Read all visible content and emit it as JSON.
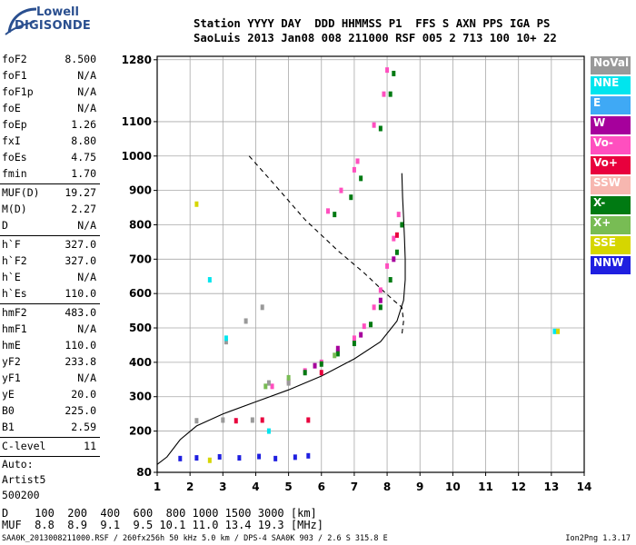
{
  "logo": {
    "line1": "Lowell",
    "line2": "DIGISONDE"
  },
  "header": {
    "line1": "Station YYYY DAY  DDD HHMMSS P1  FFS S AXN PPS IGA PS",
    "line2": "SaoLuis 2013 Jan08 008 211000 RSF 005 2 713 100 10+ 22"
  },
  "params": [
    {
      "label": "foF2",
      "value": "8.500"
    },
    {
      "label": "foF1",
      "value": "N/A"
    },
    {
      "label": "foF1p",
      "value": "N/A"
    },
    {
      "label": "foE",
      "value": "N/A"
    },
    {
      "label": "foEp",
      "value": "1.26"
    },
    {
      "label": "fxI",
      "value": "8.80"
    },
    {
      "label": "foEs",
      "value": "4.75"
    },
    {
      "label": "fmin",
      "value": "1.70"
    },
    {
      "sep": true
    },
    {
      "label": "MUF(D)",
      "value": "19.27"
    },
    {
      "label": "M(D)",
      "value": "2.27"
    },
    {
      "label": "D",
      "value": "N/A"
    },
    {
      "sep": true
    },
    {
      "label": "h`F",
      "value": "327.0"
    },
    {
      "label": "h`F2",
      "value": "327.0"
    },
    {
      "label": "h`E",
      "value": "N/A"
    },
    {
      "label": "h`Es",
      "value": "110.0"
    },
    {
      "sep": true
    },
    {
      "label": "hmF2",
      "value": "483.0"
    },
    {
      "label": "hmF1",
      "value": "N/A"
    },
    {
      "label": "hmE",
      "value": "110.0"
    },
    {
      "label": "yF2",
      "value": "233.8"
    },
    {
      "label": "yF1",
      "value": "N/A"
    },
    {
      "label": "yE",
      "value": "20.0"
    },
    {
      "label": "B0",
      "value": "225.0"
    },
    {
      "label": "B1",
      "value": "2.59"
    },
    {
      "sep": true
    },
    {
      "label": "C-level",
      "value": "11"
    },
    {
      "sep": true
    },
    {
      "text": "Auto:"
    },
    {
      "text": "Artist5"
    },
    {
      "text": "500200"
    }
  ],
  "legend": [
    {
      "label": "NoVal",
      "color": "#999999"
    },
    {
      "label": "NNE",
      "color": "#00e5ee"
    },
    {
      "label": "E",
      "color": "#3fa9f5"
    },
    {
      "label": "W",
      "color": "#a6009c"
    },
    {
      "label": "Vo-",
      "color": "#ff4fbf"
    },
    {
      "label": "Vo+",
      "color": "#e8003d"
    },
    {
      "label": "SSW",
      "color": "#f7b7b0"
    },
    {
      "label": "X-",
      "color": "#007a12"
    },
    {
      "label": "X+",
      "color": "#78bc54"
    },
    {
      "label": "SSE",
      "color": "#d6d600"
    },
    {
      "label": "NNW",
      "color": "#1f1fe0"
    }
  ],
  "dtable": {
    "line1": "D    100  200  400  600  800 1000 1500 3000 [km]",
    "line2": "MUF  8.8  8.9  9.1  9.5 10.1 11.0 13.4 19.3 [MHz]"
  },
  "footer": {
    "left": "SAA0K_2013008211000.RSF / 260fx256h 50 kHz 5.0 km / DPS-4 SAA0K 903 / 2.6 S 315.8 E",
    "right": "Ion2Png 1.3.17"
  },
  "chart_data": {
    "type": "scatter",
    "xlim": [
      1,
      14
    ],
    "ylim": [
      80,
      1290
    ],
    "x_ticks": [
      1,
      2,
      3,
      4,
      5,
      6,
      7,
      8,
      9,
      10,
      11,
      12,
      13,
      14
    ],
    "y_ticks": [
      80,
      200,
      300,
      400,
      500,
      600,
      700,
      800,
      900,
      1000,
      1100,
      1280
    ],
    "grid": true,
    "series": [
      {
        "name": "Vo-",
        "color": "#ff4fbf",
        "points": [
          [
            4.5,
            330
          ],
          [
            5,
            345
          ],
          [
            5.5,
            375
          ],
          [
            6,
            400
          ],
          [
            6.5,
            430
          ],
          [
            7,
            470
          ],
          [
            7.3,
            505
          ],
          [
            7.6,
            560
          ],
          [
            7.8,
            610
          ],
          [
            8,
            680
          ],
          [
            8.2,
            760
          ],
          [
            8.35,
            830
          ],
          [
            6.2,
            840
          ],
          [
            6.6,
            900
          ],
          [
            7,
            960
          ],
          [
            7.1,
            985
          ],
          [
            7.6,
            1090
          ],
          [
            7.9,
            1180
          ],
          [
            8,
            1250
          ]
        ]
      },
      {
        "name": "X-",
        "color": "#007a12",
        "points": [
          [
            5.5,
            370
          ],
          [
            6,
            395
          ],
          [
            6.5,
            425
          ],
          [
            7,
            455
          ],
          [
            7.5,
            510
          ],
          [
            7.8,
            560
          ],
          [
            8.1,
            640
          ],
          [
            8.3,
            720
          ],
          [
            8.45,
            800
          ],
          [
            6.4,
            830
          ],
          [
            6.9,
            880
          ],
          [
            7.2,
            935
          ],
          [
            7.8,
            1080
          ],
          [
            8.1,
            1180
          ],
          [
            8.2,
            1240
          ]
        ]
      },
      {
        "name": "W",
        "color": "#a6009c",
        "points": [
          [
            5.8,
            390
          ],
          [
            6.5,
            440
          ],
          [
            7.2,
            480
          ],
          [
            7.8,
            580
          ],
          [
            8.2,
            700
          ]
        ]
      },
      {
        "name": "Vo+",
        "color": "#e8003d",
        "points": [
          [
            3.4,
            230
          ],
          [
            4.2,
            232
          ],
          [
            5.6,
            232
          ],
          [
            6,
            370
          ],
          [
            8.3,
            770
          ]
        ]
      },
      {
        "name": "NNW",
        "color": "#1f1fe0",
        "points": [
          [
            1.7,
            120
          ],
          [
            2.2,
            122
          ],
          [
            2.9,
            125
          ],
          [
            3.5,
            122
          ],
          [
            4.1,
            126
          ],
          [
            4.6,
            120
          ],
          [
            5.2,
            124
          ],
          [
            5.6,
            128
          ]
        ]
      },
      {
        "name": "NoVal",
        "color": "#999999",
        "points": [
          [
            2.2,
            230
          ],
          [
            3,
            232
          ],
          [
            3.9,
            232
          ],
          [
            4.4,
            340
          ],
          [
            5,
            340
          ],
          [
            3.1,
            460
          ],
          [
            3.7,
            520
          ],
          [
            4.2,
            560
          ]
        ]
      },
      {
        "name": "NNE",
        "color": "#00e5ee",
        "points": [
          [
            2.6,
            640
          ],
          [
            3.1,
            470
          ],
          [
            4.4,
            200
          ],
          [
            13.1,
            490
          ]
        ]
      },
      {
        "name": "SSE",
        "color": "#d6d600",
        "points": [
          [
            2.2,
            860
          ],
          [
            2.6,
            115
          ],
          [
            13.2,
            490
          ]
        ]
      },
      {
        "name": "X+",
        "color": "#78bc54",
        "points": [
          [
            4.3,
            330
          ],
          [
            5,
            355
          ],
          [
            6.4,
            420
          ]
        ]
      }
    ],
    "profile_solid": [
      [
        1,
        103
      ],
      [
        1.3,
        125
      ],
      [
        1.7,
        175
      ],
      [
        2.2,
        215
      ],
      [
        3,
        250
      ],
      [
        4,
        285
      ],
      [
        5,
        320
      ],
      [
        6,
        360
      ],
      [
        7,
        410
      ],
      [
        7.8,
        460
      ],
      [
        8.3,
        520
      ],
      [
        8.5,
        580
      ],
      [
        8.55,
        640
      ],
      [
        8.55,
        700
      ],
      [
        8.53,
        760
      ],
      [
        8.5,
        820
      ],
      [
        8.47,
        880
      ],
      [
        8.45,
        950
      ]
    ],
    "profile_dashed": [
      [
        3.8,
        1000
      ],
      [
        4.5,
        925
      ],
      [
        5.5,
        815
      ],
      [
        6.5,
        725
      ],
      [
        7.3,
        660
      ],
      [
        7.8,
        615
      ],
      [
        8.2,
        580
      ],
      [
        8.45,
        560
      ],
      [
        8.5,
        520
      ],
      [
        8.45,
        480
      ]
    ]
  }
}
